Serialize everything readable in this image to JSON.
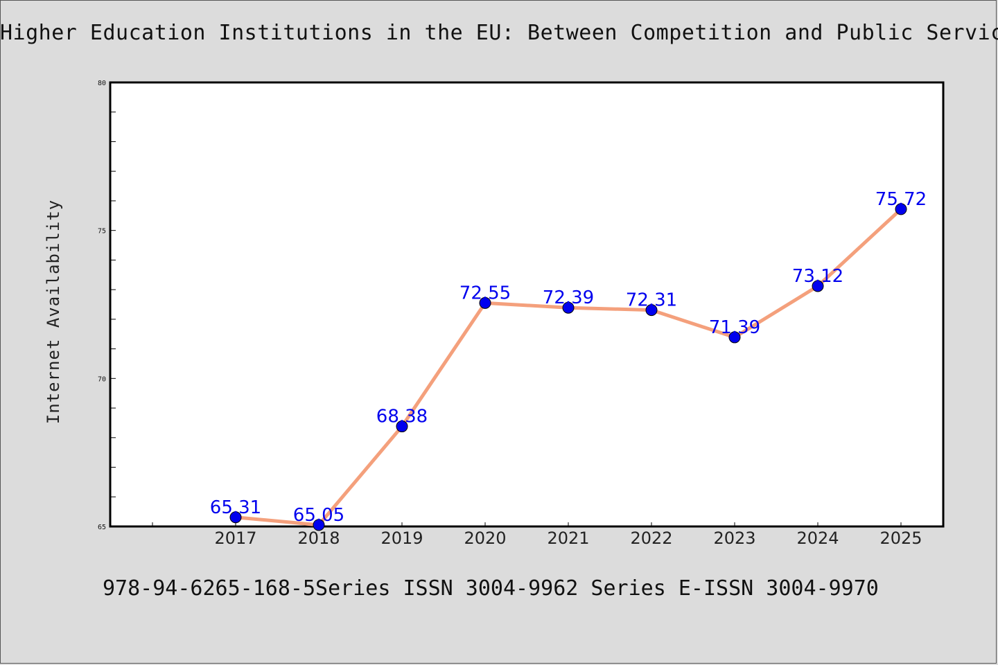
{
  "title": "Higher Education Institutions in the EU: Between Competition and Public Service",
  "footer": "978-94-6265-168-5Series ISSN 3004-9962 Series E-ISSN 3004-9970",
  "chart_data": {
    "type": "line",
    "title": "Higher Education Institutions in the EU: Between Competition and Public Service",
    "xlabel": "",
    "ylabel": "Internet Availability",
    "categories": [
      "2017",
      "2018",
      "2019",
      "2020",
      "2021",
      "2022",
      "2023",
      "2024",
      "2025"
    ],
    "series": [
      {
        "values": [
          65.31,
          65.05,
          68.38,
          72.55,
          72.39,
          72.31,
          71.39,
          73.12,
          75.72
        ],
        "labels": [
          "65.31",
          "65.05",
          "68.38",
          "72.55",
          "72.39",
          "72.31",
          "71.39",
          "73.12",
          "75.72"
        ]
      }
    ],
    "ylim": [
      65,
      80
    ],
    "yticks": [
      "65",
      "70",
      "75",
      "80"
    ],
    "grid": false,
    "legend": "none",
    "colors": {
      "line": "#f4a07c",
      "marker": "#0000ee",
      "label": "#0000ee"
    }
  }
}
